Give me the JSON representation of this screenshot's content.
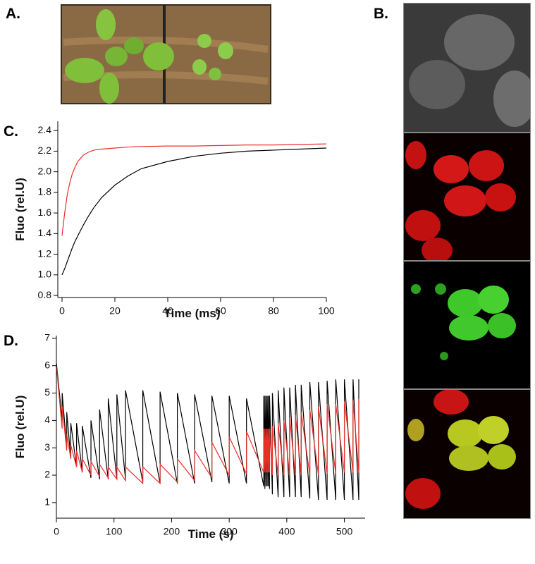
{
  "panel_labels": [
    "A.",
    "B.",
    "C.",
    "D."
  ],
  "chart_data": [
    {
      "type": "line",
      "xlabel": "Time (ms)",
      "ylabel": "Fluo (rel.U)",
      "x": [
        0,
        1,
        2,
        3,
        4,
        5,
        6,
        8,
        10,
        12,
        15,
        20,
        25,
        30,
        40,
        50,
        60,
        70,
        80,
        90,
        100
      ],
      "series": [
        {
          "color": "#000000",
          "values": [
            1.0,
            1.06,
            1.13,
            1.2,
            1.27,
            1.33,
            1.38,
            1.48,
            1.57,
            1.65,
            1.75,
            1.87,
            1.96,
            2.03,
            2.1,
            2.15,
            2.18,
            2.2,
            2.21,
            2.22,
            2.23
          ]
        },
        {
          "color": "#e8302a",
          "values": [
            1.38,
            1.6,
            1.78,
            1.9,
            1.99,
            2.05,
            2.1,
            2.16,
            2.19,
            2.21,
            2.22,
            2.23,
            2.24,
            2.245,
            2.25,
            2.25,
            2.255,
            2.26,
            2.26,
            2.265,
            2.27
          ]
        }
      ],
      "xlim": [
        -1.6,
        100
      ],
      "ylim": [
        0.78,
        2.49
      ],
      "xticks": [
        0,
        20,
        40,
        60,
        80,
        100
      ],
      "yticks": [
        0.8,
        {
          "value": 1,
          "label": "1.0"
        },
        1.2,
        1.4,
        1.6,
        1.8,
        {
          "value": 2,
          "label": "2.0"
        },
        2.2,
        2.4
      ]
    },
    {
      "type": "line",
      "xlabel": "Time (s)",
      "ylabel": "Fluo (rel.U)",
      "x": [
        0,
        10,
        10,
        18,
        18,
        25,
        25,
        35,
        35,
        45,
        45,
        60,
        60,
        75,
        75,
        90,
        90,
        105,
        105,
        120,
        120,
        150,
        150,
        180,
        180,
        210,
        210,
        240,
        240,
        270,
        270,
        300,
        300,
        330,
        330,
        360,
        360,
        362,
        362,
        364,
        364,
        366,
        366,
        368,
        368,
        370,
        370,
        375,
        375,
        385,
        385,
        395,
        395,
        405,
        405,
        415,
        415,
        425,
        425,
        440,
        440,
        455,
        455,
        470,
        470,
        485,
        485,
        500,
        500,
        515,
        515,
        525,
        525
      ],
      "series": [
        {
          "color": "#000000",
          "values": [
            6.1,
            4.0,
            5.0,
            3.0,
            4.3,
            2.6,
            3.9,
            2.3,
            3.9,
            2.1,
            3.8,
            1.9,
            4.0,
            1.85,
            4.4,
            1.85,
            4.8,
            1.85,
            4.95,
            1.85,
            5.1,
            1.75,
            5.1,
            1.7,
            5.05,
            1.7,
            5.0,
            1.7,
            4.95,
            1.75,
            4.9,
            1.7,
            4.9,
            1.7,
            4.8,
            1.6,
            4.9,
            1.5,
            4.9,
            1.6,
            4.9,
            1.6,
            4.9,
            1.6,
            4.9,
            1.5,
            4.9,
            1.3,
            5.0,
            1.2,
            5.1,
            1.2,
            5.2,
            1.2,
            5.2,
            1.2,
            5.3,
            1.2,
            5.3,
            1.15,
            5.4,
            1.1,
            5.4,
            1.1,
            5.45,
            1.1,
            5.5,
            1.1,
            5.5,
            1.1,
            5.5,
            1.1,
            5.5
          ]
        },
        {
          "color": "#e8302a",
          "values": [
            6.0,
            3.7,
            4.5,
            2.9,
            3.5,
            2.6,
            3.1,
            2.3,
            2.9,
            2.1,
            2.6,
            2.0,
            2.5,
            1.95,
            2.4,
            1.9,
            2.3,
            1.85,
            2.3,
            1.8,
            2.3,
            1.7,
            2.3,
            1.7,
            2.4,
            1.75,
            2.6,
            1.8,
            2.9,
            1.9,
            3.2,
            2.0,
            3.4,
            2.05,
            3.6,
            2.1,
            3.7,
            2.1,
            3.7,
            2.1,
            3.7,
            2.1,
            3.7,
            2.1,
            3.7,
            2.1,
            3.7,
            2.0,
            3.8,
            2.0,
            3.9,
            2.0,
            4.0,
            2.0,
            4.1,
            2.0,
            4.2,
            2.0,
            4.3,
            2.0,
            4.4,
            2.0,
            4.5,
            2.05,
            4.6,
            2.05,
            4.6,
            2.1,
            4.7,
            2.1,
            4.75,
            2.1,
            4.8
          ]
        }
      ],
      "xlim": [
        0,
        536
      ],
      "ylim": [
        0.43,
        7.1
      ],
      "xticks": [
        0,
        100,
        200,
        300,
        400,
        500
      ],
      "yticks": [
        1,
        2,
        3,
        4,
        5,
        6,
        7
      ]
    }
  ]
}
